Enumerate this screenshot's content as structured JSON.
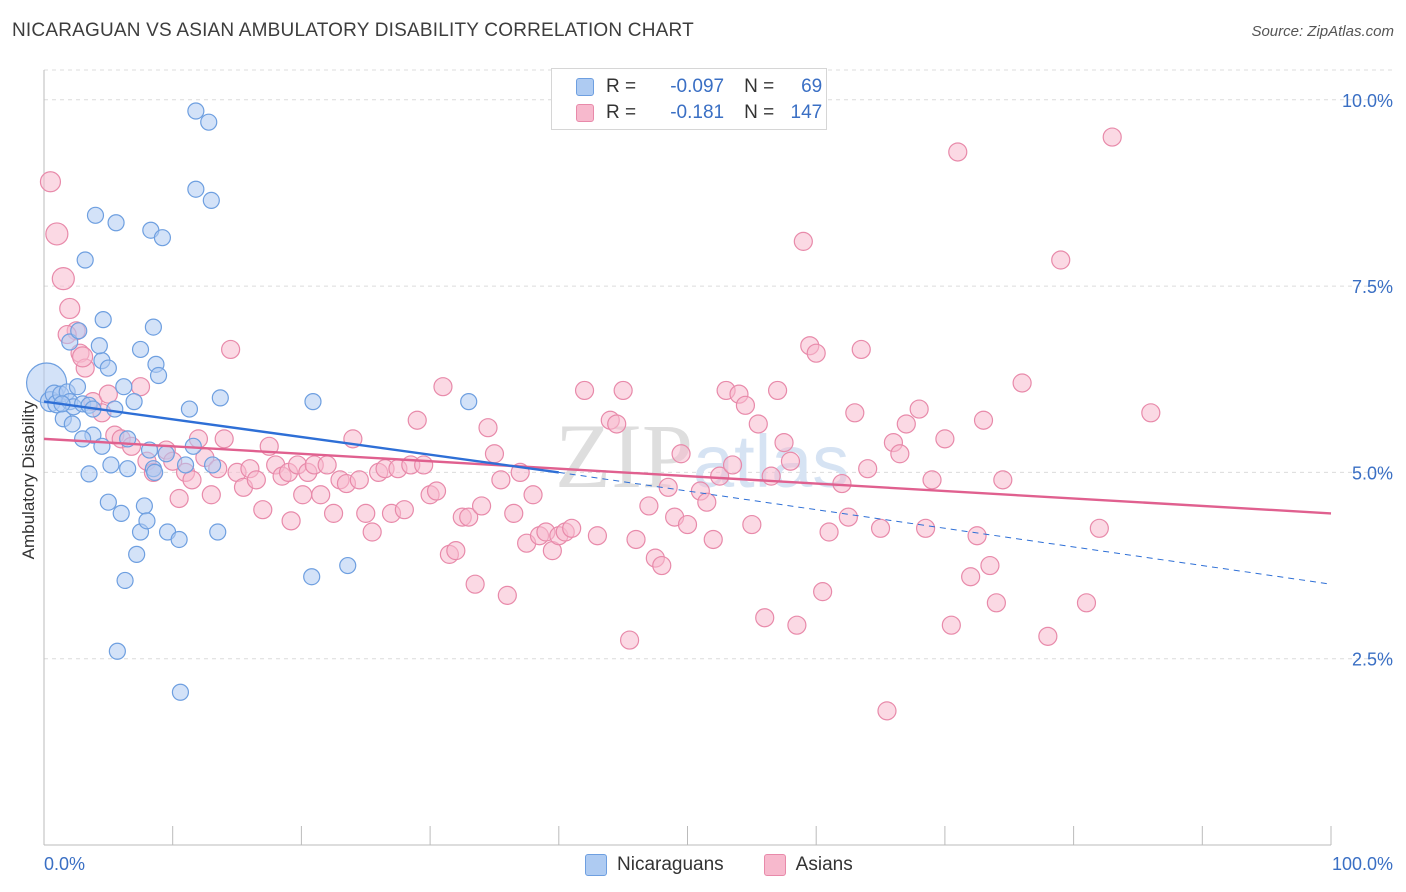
{
  "header": {
    "title": "NICARAGUAN VS ASIAN AMBULATORY DISABILITY CORRELATION CHART",
    "source": "Source: ZipAtlas.com"
  },
  "legend_top": {
    "rows": [
      {
        "r_label": "R =",
        "r_value": "-0.097",
        "n_label": "N =",
        "n_value": "69",
        "color": "#aecbf2"
      },
      {
        "r_label": "R =",
        "r_value": "-0.181",
        "n_label": "N =",
        "n_value": "147",
        "color": "#f7b9cd"
      }
    ]
  },
  "legend_bottom": {
    "items": [
      {
        "label": "Nicaraguans",
        "color": "#aecbf2"
      },
      {
        "label": "Asians",
        "color": "#f7b9cd"
      }
    ]
  },
  "watermark": {
    "zip": "ZIP",
    "atlas": "atlas"
  },
  "colors": {
    "blue_fill": "#aecbf2",
    "blue_stroke": "#6e9fe0",
    "blue_line": "#2e6fd6",
    "pink_fill": "#f7b9cd",
    "pink_stroke": "#e88aaa",
    "pink_line": "#e0608f",
    "axis_label": "#3a6fc4",
    "grid": "#dcdcdc"
  },
  "chart_data": {
    "type": "scatter",
    "title": "NICARAGUAN VS ASIAN AMBULATORY DISABILITY CORRELATION CHART",
    "xlabel": "",
    "ylabel": "Ambulatory Disability",
    "xlim": [
      0,
      100
    ],
    "ylim": [
      0,
      10.4
    ],
    "x_tick_labels": [
      "0.0%",
      "100.0%"
    ],
    "y_ticks": [
      2.5,
      5.0,
      7.5,
      10.0
    ],
    "y_tick_labels": [
      "2.5%",
      "5.0%",
      "7.5%",
      "10.0%"
    ],
    "grid": true,
    "legend_position": "top-center",
    "series": [
      {
        "name": "Nicaraguans",
        "r": -0.097,
        "n": 69,
        "trend": {
          "x0": 0,
          "y0": 5.95,
          "x1": 40,
          "y1": 5.0,
          "dashed_to_x": 100,
          "dashed_to_y": 3.5
        },
        "points": [
          [
            0.2,
            6.2,
            20
          ],
          [
            0.5,
            5.95,
            10
          ],
          [
            0.8,
            6.05,
            9
          ],
          [
            1.0,
            5.92,
            9
          ],
          [
            1.3,
            6.05,
            8
          ],
          [
            1.5,
            5.72,
            8
          ],
          [
            1.8,
            6.08,
            8
          ],
          [
            2.0,
            5.95,
            8
          ],
          [
            2.3,
            5.88,
            8
          ],
          [
            2.6,
            6.15,
            8
          ],
          [
            2.0,
            6.75,
            8
          ],
          [
            2.7,
            6.9,
            8
          ],
          [
            3.0,
            5.92,
            8
          ],
          [
            3.5,
            5.9,
            8
          ],
          [
            3.8,
            5.85,
            8
          ],
          [
            3.2,
            7.85,
            8
          ],
          [
            3.8,
            5.5,
            8
          ],
          [
            3.0,
            5.45,
            8
          ],
          [
            4.5,
            6.5,
            8
          ],
          [
            4.3,
            6.7,
            8
          ],
          [
            4.6,
            7.05,
            8
          ],
          [
            5.0,
            6.4,
            8
          ],
          [
            5.5,
            5.85,
            8
          ],
          [
            4.5,
            5.35,
            8
          ],
          [
            3.5,
            4.98,
            8
          ],
          [
            5.0,
            4.6,
            8
          ],
          [
            6.0,
            4.45,
            8
          ],
          [
            6.5,
            5.05,
            8
          ],
          [
            5.2,
            5.1,
            8
          ],
          [
            6.5,
            5.45,
            8
          ],
          [
            7.0,
            5.95,
            8
          ],
          [
            6.2,
            6.15,
            8
          ],
          [
            7.5,
            6.65,
            8
          ],
          [
            8.5,
            6.95,
            8
          ],
          [
            8.7,
            6.45,
            8
          ],
          [
            8.9,
            6.3,
            8
          ],
          [
            7.5,
            4.2,
            8
          ],
          [
            7.2,
            3.9,
            8
          ],
          [
            7.8,
            4.55,
            8
          ],
          [
            8.0,
            4.35,
            8
          ],
          [
            8.2,
            5.3,
            8
          ],
          [
            8.5,
            5.05,
            8
          ],
          [
            9.5,
            5.25,
            8
          ],
          [
            9.6,
            4.2,
            8
          ],
          [
            10.5,
            4.1,
            8
          ],
          [
            6.3,
            3.55,
            8
          ],
          [
            5.7,
            2.6,
            8
          ],
          [
            10.6,
            2.05,
            8
          ],
          [
            4.0,
            8.45,
            8
          ],
          [
            5.6,
            8.35,
            8
          ],
          [
            8.3,
            8.25,
            8
          ],
          [
            9.2,
            8.15,
            8
          ],
          [
            11.8,
            8.8,
            8
          ],
          [
            13.0,
            8.65,
            8
          ],
          [
            11.8,
            9.85,
            8
          ],
          [
            12.8,
            9.7,
            8
          ],
          [
            11.0,
            5.1,
            8
          ],
          [
            13.1,
            5.1,
            8
          ],
          [
            13.5,
            4.2,
            8
          ],
          [
            11.6,
            5.35,
            8
          ],
          [
            11.3,
            5.85,
            8
          ],
          [
            13.7,
            6.0,
            8
          ],
          [
            20.8,
            3.6,
            8
          ],
          [
            20.9,
            5.95,
            8
          ],
          [
            23.6,
            3.75,
            8
          ],
          [
            33.0,
            5.95,
            8
          ],
          [
            8.6,
            5.0,
            8
          ],
          [
            2.2,
            5.65,
            8
          ],
          [
            1.4,
            5.92,
            8
          ]
        ]
      },
      {
        "name": "Asians",
        "r": -0.181,
        "n": 147,
        "trend": {
          "x0": 0,
          "y0": 5.45,
          "x1": 100,
          "y1": 4.45
        },
        "points": [
          [
            0.5,
            8.9,
            10
          ],
          [
            1.0,
            8.2,
            11
          ],
          [
            1.5,
            7.6,
            11
          ],
          [
            2.0,
            7.2,
            10
          ],
          [
            2.5,
            6.9,
            9
          ],
          [
            2.8,
            6.6,
            9
          ],
          [
            3.2,
            6.4,
            9
          ],
          [
            3.8,
            5.95,
            9
          ],
          [
            4.5,
            5.8,
            9
          ],
          [
            5.0,
            6.05,
            9
          ],
          [
            5.5,
            5.5,
            9
          ],
          [
            6.0,
            5.45,
            9
          ],
          [
            6.8,
            5.35,
            9
          ],
          [
            7.5,
            6.15,
            9
          ],
          [
            8.0,
            5.15,
            9
          ],
          [
            8.5,
            5.0,
            9
          ],
          [
            9.5,
            5.3,
            9
          ],
          [
            10.0,
            5.15,
            9
          ],
          [
            10.5,
            4.65,
            9
          ],
          [
            11.0,
            5.0,
            9
          ],
          [
            11.5,
            4.9,
            9
          ],
          [
            12.0,
            5.45,
            9
          ],
          [
            12.5,
            5.2,
            9
          ],
          [
            13.0,
            4.7,
            9
          ],
          [
            13.5,
            5.05,
            9
          ],
          [
            14.0,
            5.45,
            9
          ],
          [
            14.5,
            6.65,
            9
          ],
          [
            15.0,
            5.0,
            9
          ],
          [
            15.5,
            4.8,
            9
          ],
          [
            16.0,
            5.05,
            9
          ],
          [
            16.5,
            4.9,
            9
          ],
          [
            17.0,
            4.5,
            9
          ],
          [
            17.5,
            5.35,
            9
          ],
          [
            18.0,
            5.1,
            9
          ],
          [
            18.5,
            4.95,
            9
          ],
          [
            19.0,
            5.0,
            9
          ],
          [
            19.2,
            4.35,
            9
          ],
          [
            19.7,
            5.1,
            9
          ],
          [
            20.1,
            4.7,
            9
          ],
          [
            20.5,
            5.0,
            9
          ],
          [
            21.0,
            5.1,
            9
          ],
          [
            21.5,
            4.7,
            9
          ],
          [
            22.0,
            5.1,
            9
          ],
          [
            22.5,
            4.45,
            9
          ],
          [
            23.0,
            4.9,
            9
          ],
          [
            23.5,
            4.85,
            9
          ],
          [
            24.0,
            5.45,
            9
          ],
          [
            24.5,
            4.9,
            9
          ],
          [
            25.0,
            4.45,
            9
          ],
          [
            25.5,
            4.2,
            9
          ],
          [
            26.0,
            5.0,
            9
          ],
          [
            26.5,
            5.05,
            9
          ],
          [
            27.0,
            4.45,
            9
          ],
          [
            27.5,
            5.05,
            9
          ],
          [
            28.0,
            4.5,
            9
          ],
          [
            28.5,
            5.1,
            9
          ],
          [
            29.0,
            5.7,
            9
          ],
          [
            29.5,
            5.1,
            9
          ],
          [
            30.0,
            4.7,
            9
          ],
          [
            30.5,
            4.75,
            9
          ],
          [
            31.0,
            6.15,
            9
          ],
          [
            31.5,
            3.9,
            9
          ],
          [
            32.0,
            3.95,
            9
          ],
          [
            32.5,
            4.4,
            9
          ],
          [
            33.0,
            4.4,
            9
          ],
          [
            33.5,
            3.5,
            9
          ],
          [
            34.0,
            4.55,
            9
          ],
          [
            34.5,
            5.6,
            9
          ],
          [
            35.0,
            5.25,
            9
          ],
          [
            35.5,
            4.9,
            9
          ],
          [
            36.0,
            3.35,
            9
          ],
          [
            36.5,
            4.45,
            9
          ],
          [
            37.0,
            5.0,
            9
          ],
          [
            37.5,
            4.05,
            9
          ],
          [
            38.0,
            4.7,
            9
          ],
          [
            38.5,
            4.15,
            9
          ],
          [
            39.0,
            4.2,
            9
          ],
          [
            39.5,
            3.95,
            9
          ],
          [
            40.0,
            4.15,
            9
          ],
          [
            40.5,
            4.2,
            9
          ],
          [
            41.0,
            4.25,
            9
          ],
          [
            42.0,
            6.1,
            9
          ],
          [
            43.0,
            4.15,
            9
          ],
          [
            44.0,
            5.7,
            9
          ],
          [
            44.5,
            5.65,
            9
          ],
          [
            45.0,
            6.1,
            9
          ],
          [
            45.5,
            2.75,
            9
          ],
          [
            46.0,
            4.1,
            9
          ],
          [
            47.0,
            4.55,
            9
          ],
          [
            47.5,
            3.85,
            9
          ],
          [
            48.0,
            3.75,
            9
          ],
          [
            48.5,
            4.8,
            9
          ],
          [
            49.0,
            4.4,
            9
          ],
          [
            49.5,
            5.25,
            9
          ],
          [
            50.0,
            4.3,
            9
          ],
          [
            51.0,
            4.75,
            9
          ],
          [
            51.5,
            4.6,
            9
          ],
          [
            52.0,
            4.1,
            9
          ],
          [
            52.5,
            4.95,
            9
          ],
          [
            53.0,
            6.1,
            9
          ],
          [
            53.5,
            5.1,
            9
          ],
          [
            54.0,
            6.05,
            9
          ],
          [
            54.5,
            5.9,
            9
          ],
          [
            55.0,
            4.3,
            9
          ],
          [
            55.5,
            5.65,
            9
          ],
          [
            56.0,
            3.05,
            9
          ],
          [
            56.5,
            4.95,
            9
          ],
          [
            57.0,
            6.1,
            9
          ],
          [
            57.5,
            5.4,
            9
          ],
          [
            58.0,
            5.15,
            9
          ],
          [
            58.5,
            2.95,
            9
          ],
          [
            59.0,
            8.1,
            9
          ],
          [
            59.5,
            6.7,
            9
          ],
          [
            60.0,
            6.6,
            9
          ],
          [
            60.5,
            3.4,
            9
          ],
          [
            61.0,
            4.2,
            9
          ],
          [
            62.0,
            4.85,
            9
          ],
          [
            62.5,
            4.4,
            9
          ],
          [
            63.0,
            5.8,
            9
          ],
          [
            63.5,
            6.65,
            9
          ],
          [
            64.0,
            5.05,
            9
          ],
          [
            65.0,
            4.25,
            9
          ],
          [
            65.5,
            1.8,
            9
          ],
          [
            66.0,
            5.4,
            9
          ],
          [
            66.5,
            5.25,
            9
          ],
          [
            67.0,
            5.65,
            9
          ],
          [
            68.0,
            5.85,
            9
          ],
          [
            68.5,
            4.25,
            9
          ],
          [
            69.0,
            4.9,
            9
          ],
          [
            70.0,
            5.45,
            9
          ],
          [
            70.5,
            2.95,
            9
          ],
          [
            71.0,
            9.3,
            9
          ],
          [
            72.0,
            3.6,
            9
          ],
          [
            72.5,
            4.15,
            9
          ],
          [
            73.0,
            5.7,
            9
          ],
          [
            73.5,
            3.75,
            9
          ],
          [
            74.0,
            3.25,
            9
          ],
          [
            74.5,
            4.9,
            9
          ],
          [
            76.0,
            6.2,
            9
          ],
          [
            78.0,
            2.8,
            9
          ],
          [
            79.0,
            7.85,
            9
          ],
          [
            81.0,
            3.25,
            9
          ],
          [
            82.0,
            4.25,
            9
          ],
          [
            83.0,
            9.5,
            9
          ],
          [
            86.0,
            5.8,
            9
          ],
          [
            1.8,
            6.85,
            9
          ],
          [
            3.0,
            6.55,
            10
          ]
        ]
      }
    ]
  }
}
